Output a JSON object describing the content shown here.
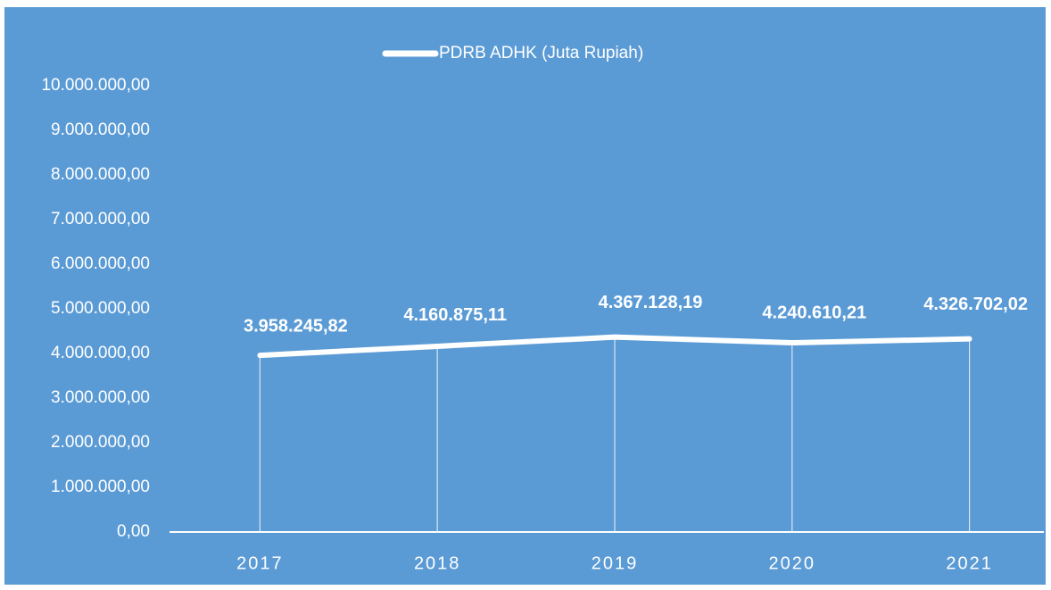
{
  "chart_data": {
    "type": "line",
    "categories": [
      "2017",
      "2018",
      "2019",
      "2020",
      "2021"
    ],
    "series": [
      {
        "name": "PDRB ADHK (Juta Rupiah)",
        "color": "#ffffff",
        "values": [
          3958245.82,
          4160875.11,
          4367128.19,
          4240610.21,
          4326702.02
        ],
        "value_labels": [
          "3.958.245,82",
          "4.160.875,11",
          "4.367.128,19",
          "4.240.610,21",
          "4.326.702,02"
        ]
      }
    ],
    "ylim": [
      0,
      10000000
    ],
    "yticks": [
      {
        "value": 0,
        "label": "0,00"
      },
      {
        "value": 1000000,
        "label": "1.000.000,00"
      },
      {
        "value": 2000000,
        "label": "2.000.000,00"
      },
      {
        "value": 3000000,
        "label": "3.000.000,00"
      },
      {
        "value": 4000000,
        "label": "4.000.000,00"
      },
      {
        "value": 5000000,
        "label": "5.000.000,00"
      },
      {
        "value": 6000000,
        "label": "6.000.000,00"
      },
      {
        "value": 7000000,
        "label": "7.000.000,00"
      },
      {
        "value": 8000000,
        "label": "8.000.000,00"
      },
      {
        "value": 9000000,
        "label": "9.000.000,00"
      },
      {
        "value": 10000000,
        "label": "10.000.000,00"
      }
    ],
    "legend": "top",
    "drop_lines": true
  }
}
